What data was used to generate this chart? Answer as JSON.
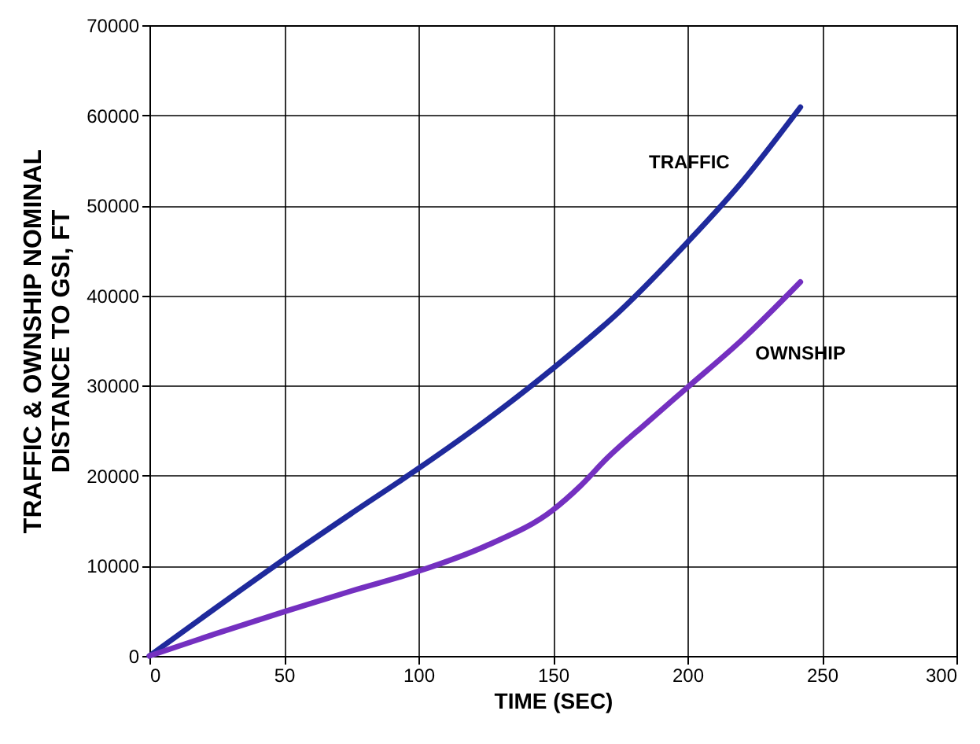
{
  "chart_data": {
    "type": "line",
    "xlabel": "TIME (SEC)",
    "ylabel": "TRAFFIC & OWNSHIP NOMINAL DISTANCE TO GSI, FT",
    "xlim": [
      0,
      300
    ],
    "xticks": [
      0,
      50,
      100,
      150,
      200,
      250,
      300
    ],
    "ylim": [
      0,
      70000
    ],
    "yticks": [
      0,
      10000,
      20000,
      30000,
      40000,
      50000,
      60000,
      70000
    ],
    "grid": true,
    "marker": "none",
    "line_style": "solid",
    "series": [
      {
        "name": "TRAFFIC",
        "color": "#1f2a9c",
        "x": [
          0,
          25,
          50,
          75,
          100,
          125,
          150,
          175,
          200,
          220,
          242
        ],
        "values": [
          0,
          5400,
          10700,
          15800,
          20800,
          26100,
          31900,
          38300,
          45900,
          52500,
          60900
        ]
      },
      {
        "name": "OWNSHIP",
        "color": "#7430c0",
        "x": [
          0,
          25,
          50,
          75,
          100,
          125,
          150,
          160,
          170,
          185,
          200,
          220,
          242
        ],
        "values": [
          0,
          2500,
          4900,
          7200,
          9400,
          12200,
          16200,
          18800,
          21900,
          25900,
          29800,
          35000,
          41500
        ]
      }
    ]
  }
}
